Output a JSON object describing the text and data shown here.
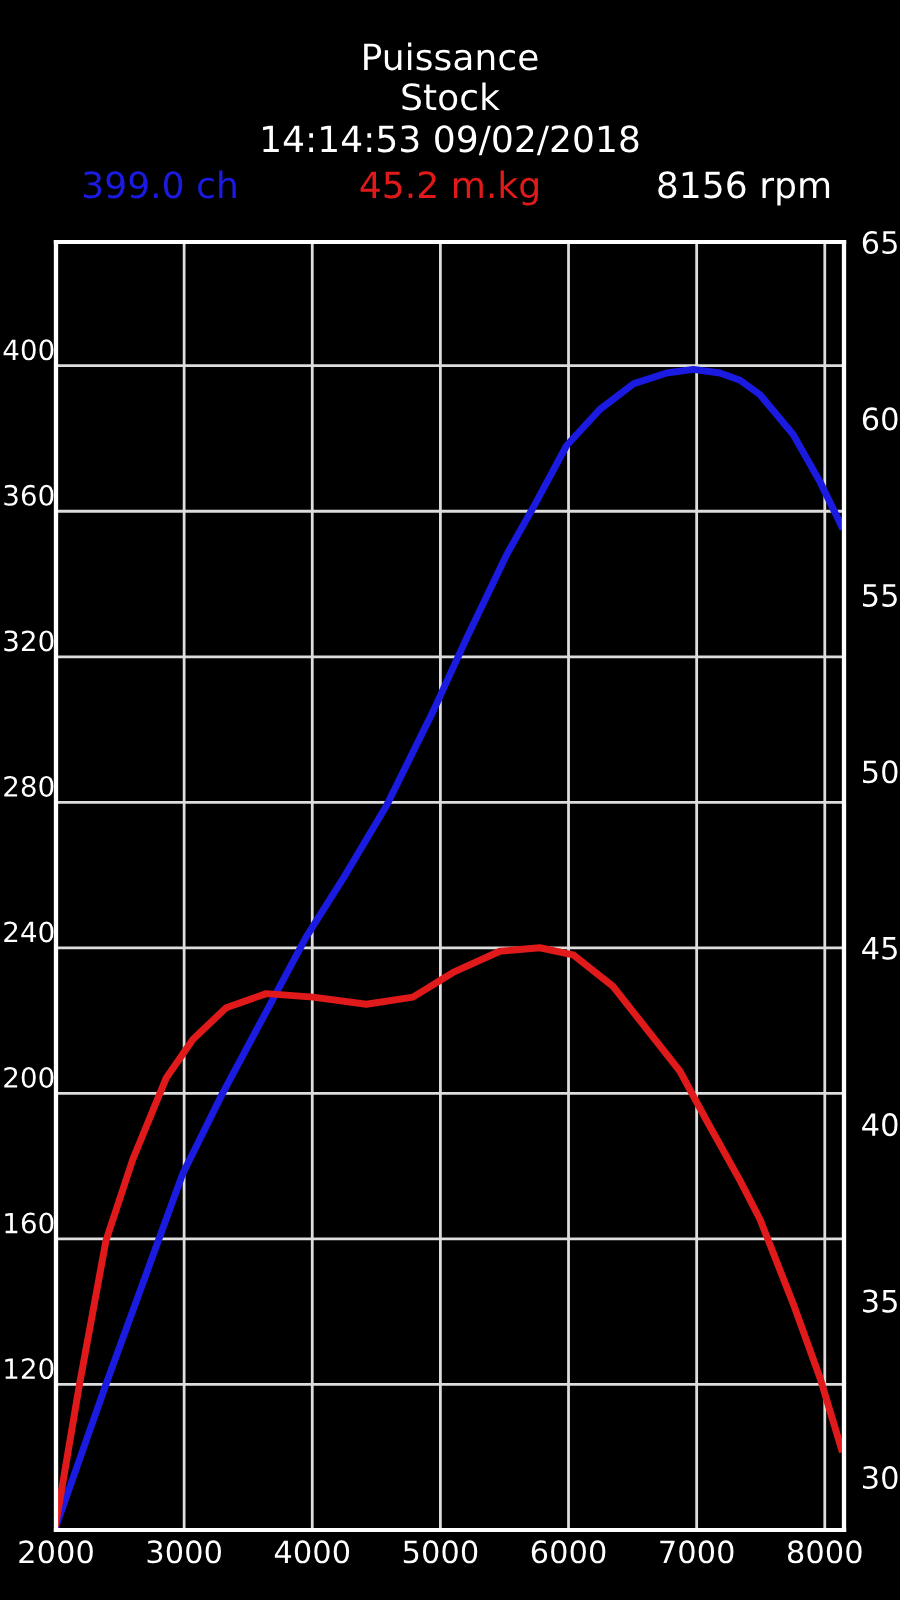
{
  "chart_data": {
    "type": "line",
    "title": "Puissance",
    "subtitle": "Stock",
    "annotations": [
      "14:14:53 09/02/2018",
      "399.0 ch",
      "45.2 m.kg",
      "8156 rpm"
    ],
    "series": [
      {
        "color": "#1a1ae0",
        "x": [
          2000,
          2390,
          2990,
          3300,
          3953,
          4240,
          4578,
          4943,
          5203,
          5516,
          5724,
          5984,
          6245,
          6505,
          6766,
          6974,
          7182,
          7339,
          7495,
          7755,
          7964,
          8130
        ],
        "values": [
          81,
          120,
          178,
          200,
          243,
          259,
          279,
          305,
          325,
          348,
          361,
          378,
          388,
          395,
          398,
          399,
          398,
          396,
          392,
          381,
          368,
          356
        ]
      },
      {
        "color": "#e01a1a",
        "axis": "y2",
        "x": [
          2000,
          2182,
          2390,
          2599,
          2859,
          3068,
          3328,
          3641,
          4005,
          4422,
          4786,
          5099,
          5464,
          5776,
          6036,
          6349,
          6609,
          6870,
          7078,
          7339,
          7495,
          7755,
          7964,
          8130
        ],
        "values": [
          28.7,
          32.6,
          36.7,
          39.0,
          41.3,
          42.4,
          43.3,
          43.7,
          43.6,
          43.4,
          43.6,
          44.3,
          44.9,
          45.0,
          44.8,
          43.9,
          42.7,
          41.5,
          40.1,
          38.4,
          37.3,
          34.9,
          32.8,
          30.8
        ]
      }
    ],
    "xlim": [
      2000,
      8150
    ],
    "xticks": [
      2000,
      3000,
      4000,
      5000,
      6000,
      7000,
      8000
    ],
    "ylim": [
      80,
      434
    ],
    "yticks": [
      120,
      160,
      200,
      240,
      280,
      320,
      360,
      400
    ],
    "y2lim": [
      28.5,
      65
    ],
    "y2ticks": [
      30,
      35,
      40,
      45,
      50,
      55,
      60,
      65
    ],
    "grid": true,
    "line_style": "solid",
    "marker": "none"
  }
}
